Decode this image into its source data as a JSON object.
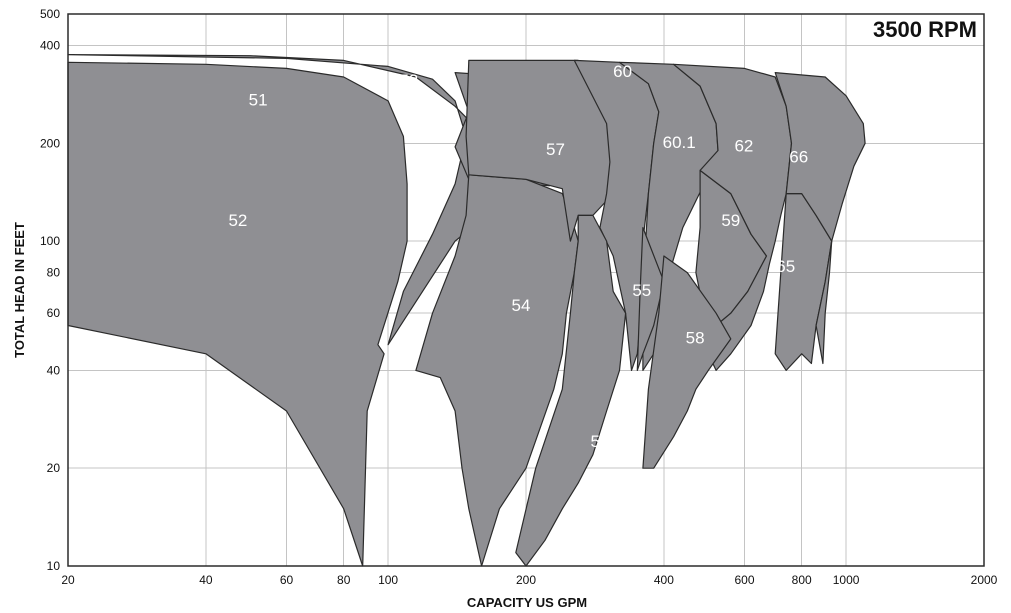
{
  "chart_data": {
    "type": "area",
    "title": "3500 RPM",
    "xlabel": "CAPACITY US GPM",
    "ylabel": "TOTAL HEAD IN FEET",
    "x_scale": "log",
    "y_scale": "log",
    "xlim": [
      20,
      2000
    ],
    "ylim": [
      10,
      500
    ],
    "grid": true,
    "x_ticks": [
      20,
      40,
      60,
      80,
      100,
      200,
      400,
      600,
      800,
      1000,
      2000
    ],
    "x_tick_labels": [
      "20",
      "40",
      "60",
      "80",
      "100",
      "200",
      "400",
      "600",
      "800",
      "1000",
      "2000"
    ],
    "y_ticks": [
      10,
      20,
      40,
      60,
      80,
      100,
      200,
      400,
      500
    ],
    "y_tick_labels": [
      "10",
      "20",
      "40",
      "60",
      "80",
      "100",
      "200",
      "400",
      "500"
    ],
    "x_gridlines": [
      20,
      40,
      60,
      80,
      100,
      200,
      400,
      600,
      800,
      1000
    ],
    "y_gridlines": [
      20,
      40,
      60,
      80,
      100,
      200,
      400
    ],
    "regions": [
      {
        "name": "51",
        "label_at": [
          52,
          270
        ],
        "points": [
          [
            20,
            375
          ],
          [
            60,
            365
          ],
          [
            100,
            345
          ],
          [
            125,
            315
          ],
          [
            140,
            270
          ],
          [
            148,
            210
          ],
          [
            140,
            150
          ],
          [
            125,
            105
          ],
          [
            108,
            70
          ],
          [
            100,
            48
          ],
          [
            140,
            100
          ],
          [
            200,
            150
          ],
          [
            225,
            148
          ],
          [
            200,
            190
          ],
          [
            180,
            200
          ],
          [
            160,
            215
          ],
          [
            140,
            260
          ],
          [
            115,
            320
          ],
          [
            80,
            360
          ],
          [
            50,
            372
          ],
          [
            20,
            375
          ]
        ]
      },
      {
        "name": "53",
        "label_at": [
          111,
          310
        ],
        "points": [
          [
            140,
            330
          ],
          [
            165,
            325
          ],
          [
            180,
            300
          ],
          [
            190,
            250
          ],
          [
            185,
            190
          ],
          [
            150,
            155
          ],
          [
            140,
            195
          ],
          [
            150,
            250
          ],
          [
            140,
            330
          ]
        ]
      },
      {
        "name": "52",
        "label_at": [
          47,
          115
        ],
        "points": [
          [
            20,
            355
          ],
          [
            40,
            350
          ],
          [
            60,
            340
          ],
          [
            80,
            320
          ],
          [
            100,
            270
          ],
          [
            108,
            210
          ],
          [
            110,
            150
          ],
          [
            110,
            100
          ],
          [
            105,
            75
          ],
          [
            95,
            48
          ],
          [
            98,
            45
          ],
          [
            90,
            30
          ],
          [
            88,
            10
          ],
          [
            80,
            15
          ],
          [
            60,
            30
          ],
          [
            40,
            45
          ],
          [
            20,
            55
          ],
          [
            20,
            180
          ],
          [
            20,
            355
          ]
        ]
      },
      {
        "name": "54",
        "label_at": [
          195,
          63
        ],
        "points": [
          [
            150,
            160
          ],
          [
            200,
            155
          ],
          [
            240,
            140
          ],
          [
            255,
            110
          ],
          [
            260,
            100
          ],
          [
            255,
            80
          ],
          [
            245,
            60
          ],
          [
            240,
            45
          ],
          [
            230,
            35
          ],
          [
            200,
            20
          ],
          [
            175,
            15
          ],
          [
            160,
            10
          ],
          [
            150,
            15
          ],
          [
            145,
            20
          ],
          [
            140,
            30
          ],
          [
            130,
            38
          ],
          [
            115,
            40
          ],
          [
            125,
            60
          ],
          [
            140,
            90
          ],
          [
            148,
            120
          ],
          [
            150,
            160
          ]
        ]
      },
      {
        "name": "57",
        "label_at": [
          232,
          190
        ],
        "points": [
          [
            150,
            360
          ],
          [
            260,
            360
          ],
          [
            300,
            300
          ],
          [
            320,
            230
          ],
          [
            320,
            165
          ],
          [
            310,
            140
          ],
          [
            280,
            120
          ],
          [
            260,
            120
          ],
          [
            250,
            100
          ],
          [
            240,
            145
          ],
          [
            200,
            155
          ],
          [
            150,
            160
          ],
          [
            148,
            210
          ],
          [
            150,
            360
          ]
        ]
      },
      {
        "name": "60",
        "label_at": [
          325,
          330
        ],
        "points": [
          [
            255,
            360
          ],
          [
            320,
            355
          ],
          [
            370,
            305
          ],
          [
            390,
            250
          ],
          [
            380,
            200
          ],
          [
            370,
            140
          ],
          [
            360,
            100
          ],
          [
            360,
            70
          ],
          [
            350,
            45
          ],
          [
            340,
            40
          ],
          [
            330,
            60
          ],
          [
            310,
            90
          ],
          [
            290,
            110
          ],
          [
            300,
            140
          ],
          [
            305,
            175
          ],
          [
            300,
            230
          ],
          [
            255,
            360
          ]
        ]
      },
      {
        "name": "60.1",
        "label_at": [
          432,
          200
        ],
        "points": [
          [
            320,
            355
          ],
          [
            420,
            350
          ],
          [
            480,
            300
          ],
          [
            520,
            230
          ],
          [
            525,
            190
          ],
          [
            490,
            150
          ],
          [
            440,
            110
          ],
          [
            400,
            70
          ],
          [
            380,
            45
          ],
          [
            360,
            40
          ],
          [
            360,
            70
          ],
          [
            370,
            140
          ],
          [
            380,
            200
          ],
          [
            390,
            250
          ],
          [
            370,
            305
          ],
          [
            320,
            355
          ]
        ]
      },
      {
        "name": "55",
        "label_at": [
          358,
          70
        ],
        "points": [
          [
            360,
            110
          ],
          [
            400,
            75
          ],
          [
            380,
            55
          ],
          [
            360,
            45
          ],
          [
            350,
            40
          ],
          [
            355,
            70
          ],
          [
            360,
            110
          ]
        ]
      },
      {
        "name": "59",
        "label_at": [
          560,
          115
        ],
        "points": [
          [
            480,
            165
          ],
          [
            560,
            140
          ],
          [
            620,
            105
          ],
          [
            670,
            90
          ],
          [
            610,
            70
          ],
          [
            560,
            60
          ],
          [
            520,
            55
          ],
          [
            490,
            60
          ],
          [
            470,
            80
          ],
          [
            480,
            110
          ],
          [
            480,
            165
          ]
        ]
      },
      {
        "name": "62",
        "label_at": [
          598,
          195
        ],
        "points": [
          [
            420,
            350
          ],
          [
            600,
            340
          ],
          [
            700,
            320
          ],
          [
            740,
            260
          ],
          [
            760,
            200
          ],
          [
            740,
            140
          ],
          [
            720,
            120
          ],
          [
            700,
            100
          ],
          [
            680,
            85
          ],
          [
            660,
            70
          ],
          [
            620,
            55
          ],
          [
            560,
            45
          ],
          [
            520,
            40
          ],
          [
            500,
            45
          ],
          [
            520,
            55
          ],
          [
            560,
            60
          ],
          [
            610,
            70
          ],
          [
            670,
            90
          ],
          [
            620,
            105
          ],
          [
            560,
            140
          ],
          [
            480,
            165
          ],
          [
            525,
            190
          ],
          [
            520,
            230
          ],
          [
            480,
            300
          ],
          [
            420,
            350
          ]
        ]
      },
      {
        "name": "58",
        "label_at": [
          468,
          50
        ],
        "points": [
          [
            400,
            90
          ],
          [
            450,
            80
          ],
          [
            520,
            60
          ],
          [
            560,
            50
          ],
          [
            500,
            40
          ],
          [
            470,
            35
          ],
          [
            450,
            30
          ],
          [
            420,
            25
          ],
          [
            380,
            20
          ],
          [
            360,
            20
          ],
          [
            370,
            35
          ],
          [
            390,
            60
          ],
          [
            400,
            90
          ]
        ]
      },
      {
        "name": "56",
        "label_at": [
          290,
          24
        ],
        "points": [
          [
            260,
            120
          ],
          [
            280,
            120
          ],
          [
            300,
            100
          ],
          [
            310,
            70
          ],
          [
            330,
            60
          ],
          [
            320,
            40
          ],
          [
            300,
            30
          ],
          [
            280,
            22
          ],
          [
            260,
            18
          ],
          [
            240,
            15
          ],
          [
            220,
            12
          ],
          [
            200,
            10
          ],
          [
            190,
            11
          ],
          [
            210,
            20
          ],
          [
            240,
            35
          ],
          [
            250,
            60
          ],
          [
            255,
            80
          ],
          [
            260,
            100
          ],
          [
            260,
            120
          ]
        ]
      },
      {
        "name": "65",
        "label_at": [
          738,
          83
        ],
        "points": [
          [
            740,
            140
          ],
          [
            800,
            140
          ],
          [
            860,
            120
          ],
          [
            930,
            100
          ],
          [
            900,
            75
          ],
          [
            860,
            55
          ],
          [
            840,
            42
          ],
          [
            800,
            45
          ],
          [
            740,
            40
          ],
          [
            700,
            45
          ],
          [
            720,
            80
          ],
          [
            740,
            140
          ]
        ]
      },
      {
        "name": "66",
        "label_at": [
          788,
          180
        ],
        "points": [
          [
            700,
            330
          ],
          [
            900,
            320
          ],
          [
            1000,
            280
          ],
          [
            1090,
            230
          ],
          [
            1100,
            200
          ],
          [
            1040,
            170
          ],
          [
            980,
            130
          ],
          [
            930,
            100
          ],
          [
            920,
            80
          ],
          [
            900,
            60
          ],
          [
            890,
            42
          ],
          [
            860,
            55
          ],
          [
            900,
            75
          ],
          [
            930,
            100
          ],
          [
            860,
            120
          ],
          [
            800,
            140
          ],
          [
            740,
            140
          ],
          [
            760,
            200
          ],
          [
            740,
            260
          ],
          [
            700,
            330
          ]
        ]
      }
    ]
  }
}
